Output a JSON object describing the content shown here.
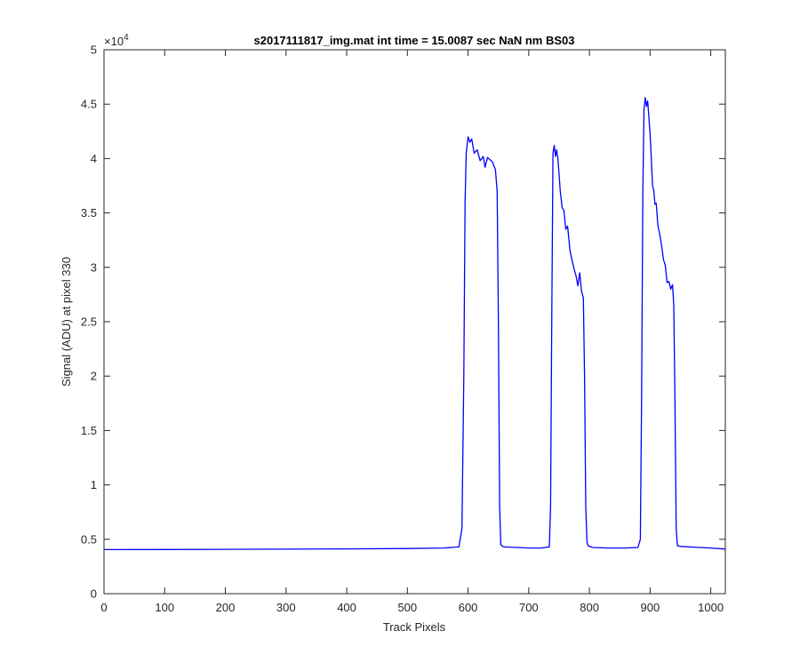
{
  "chart_data": {
    "type": "line",
    "title": "s2017111817_img.mat int time = 15.0087 sec  NaN nm BS03",
    "xlabel": "Track Pixels",
    "ylabel": "Signal (ADU) at pixel 330",
    "exponent_label": "×10",
    "exponent_power": "4",
    "xlim": [
      0,
      1024
    ],
    "ylim": [
      0,
      50000
    ],
    "xticks": [
      0,
      100,
      200,
      300,
      400,
      500,
      600,
      700,
      800,
      900,
      1000
    ],
    "xtick_labels": [
      "0",
      "100",
      "200",
      "300",
      "400",
      "500",
      "600",
      "700",
      "800",
      "900",
      "1000"
    ],
    "yticks": [
      0,
      5000,
      10000,
      15000,
      20000,
      25000,
      30000,
      35000,
      40000,
      45000,
      50000
    ],
    "ytick_labels": [
      "0",
      "0.5",
      "1",
      "1.5",
      "2",
      "2.5",
      "3",
      "3.5",
      "4",
      "4.5",
      "5"
    ],
    "grid": false,
    "line_color": "#0000ff",
    "series": [
      {
        "x": [
          0,
          100,
          200,
          300,
          400,
          500,
          560,
          585,
          590,
          593,
          595,
          597,
          600,
          603,
          606,
          610,
          615,
          620,
          625,
          628,
          632,
          636,
          640,
          645,
          648,
          650,
          652,
          654,
          657,
          660,
          680,
          700,
          720,
          734,
          736,
          738,
          740,
          742,
          744,
          746,
          748,
          750,
          752,
          755,
          758,
          761,
          764,
          768,
          772,
          775,
          778,
          781,
          784,
          787,
          790,
          792,
          794,
          796,
          798,
          805,
          830,
          860,
          880,
          884,
          886,
          888,
          890,
          892,
          894,
          896,
          898,
          900,
          902,
          904,
          906,
          908,
          910,
          913,
          916,
          919,
          922,
          925,
          928,
          931,
          934,
          937,
          939,
          941,
          943,
          945,
          950,
          980,
          1000,
          1024
        ],
        "y": [
          4050,
          4060,
          4080,
          4090,
          4120,
          4150,
          4200,
          4300,
          6000,
          20000,
          36000,
          40500,
          42000,
          41500,
          41800,
          40500,
          40800,
          39800,
          40200,
          39200,
          40100,
          39900,
          39700,
          39000,
          37000,
          25000,
          8000,
          4500,
          4350,
          4300,
          4250,
          4200,
          4200,
          4300,
          8000,
          26000,
          40500,
          41200,
          40200,
          40800,
          40000,
          38500,
          37000,
          35500,
          35200,
          33500,
          33800,
          31500,
          30500,
          29800,
          29200,
          28300,
          29500,
          27800,
          27200,
          20000,
          8000,
          4700,
          4400,
          4250,
          4200,
          4200,
          4250,
          5000,
          18000,
          37000,
          44500,
          45600,
          44800,
          45300,
          43800,
          42200,
          40000,
          37500,
          37100,
          35800,
          35900,
          33800,
          33000,
          32000,
          30700,
          30200,
          28600,
          28700,
          28000,
          28400,
          26500,
          18000,
          6000,
          4400,
          4350,
          4250,
          4200,
          4100
        ]
      }
    ]
  }
}
